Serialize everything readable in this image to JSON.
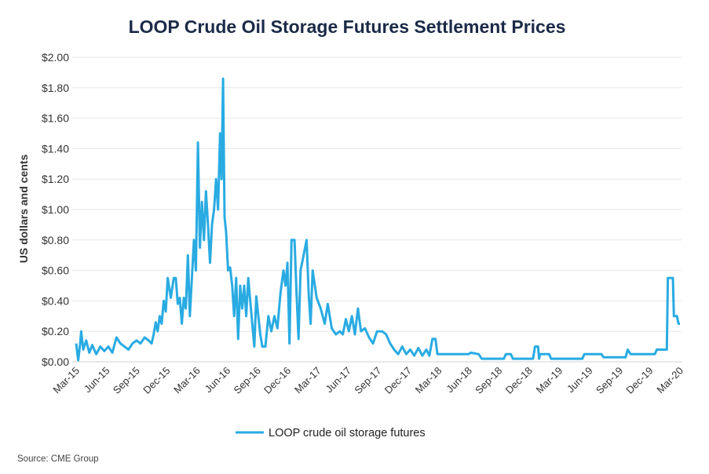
{
  "chart_data": {
    "type": "line",
    "title": "LOOP Crude Oil Storage Futures Settlement Prices",
    "xlabel": "",
    "ylabel": "US dollars and cents",
    "ylim": [
      0,
      2.0
    ],
    "yticks": [
      "$0.00",
      "$0.20",
      "$0.40",
      "$0.60",
      "$0.80",
      "$1.00",
      "$1.20",
      "$1.40",
      "$1.60",
      "$1.80",
      "$2.00"
    ],
    "ytick_values": [
      0,
      0.2,
      0.4,
      0.6,
      0.8,
      1.0,
      1.2,
      1.4,
      1.6,
      1.8,
      2.0
    ],
    "xticks": [
      "Mar-15",
      "Jun-15",
      "Sep-15",
      "Dec-15",
      "Mar-16",
      "Jun-16",
      "Sep-16",
      "Dec-16",
      "Mar-17",
      "Jun-17",
      "Sep-17",
      "Dec-17",
      "Mar-18",
      "Jun-18",
      "Sep-18",
      "Dec-18",
      "Mar-19",
      "Jun-19",
      "Sep-19",
      "Dec-19",
      "Mar-20"
    ],
    "x_unit": "months since Mar-15",
    "xlim": [
      0,
      60
    ],
    "grid": true,
    "legend_position": "bottom-center",
    "series": [
      {
        "name": "LOOP crude oil storage futures",
        "color": "#29abe2",
        "points": [
          [
            0,
            0.12
          ],
          [
            0.2,
            0.01
          ],
          [
            0.4,
            0.12
          ],
          [
            0.5,
            0.2
          ],
          [
            0.7,
            0.08
          ],
          [
            1,
            0.14
          ],
          [
            1.3,
            0.06
          ],
          [
            1.6,
            0.11
          ],
          [
            2,
            0.05
          ],
          [
            2.4,
            0.1
          ],
          [
            2.8,
            0.07
          ],
          [
            3.2,
            0.1
          ],
          [
            3.6,
            0.06
          ],
          [
            4,
            0.16
          ],
          [
            4.4,
            0.12
          ],
          [
            4.8,
            0.1
          ],
          [
            5.2,
            0.08
          ],
          [
            5.6,
            0.12
          ],
          [
            6,
            0.14
          ],
          [
            6.4,
            0.12
          ],
          [
            6.8,
            0.16
          ],
          [
            7.2,
            0.14
          ],
          [
            7.5,
            0.12
          ],
          [
            7.7,
            0.18
          ],
          [
            7.9,
            0.26
          ],
          [
            8.1,
            0.2
          ],
          [
            8.3,
            0.3
          ],
          [
            8.5,
            0.25
          ],
          [
            8.7,
            0.4
          ],
          [
            8.9,
            0.33
          ],
          [
            9.1,
            0.55
          ],
          [
            9.4,
            0.42
          ],
          [
            9.7,
            0.55
          ],
          [
            9.9,
            0.55
          ],
          [
            10.1,
            0.38
          ],
          [
            10.3,
            0.42
          ],
          [
            10.5,
            0.25
          ],
          [
            10.7,
            0.42
          ],
          [
            10.9,
            0.35
          ],
          [
            11.1,
            0.7
          ],
          [
            11.3,
            0.3
          ],
          [
            11.5,
            0.55
          ],
          [
            11.7,
            0.8
          ],
          [
            11.9,
            0.6
          ],
          [
            12.1,
            1.44
          ],
          [
            12.3,
            0.75
          ],
          [
            12.5,
            1.05
          ],
          [
            12.7,
            0.8
          ],
          [
            12.9,
            1.12
          ],
          [
            13.1,
            0.9
          ],
          [
            13.3,
            0.65
          ],
          [
            13.5,
            0.9
          ],
          [
            13.7,
            1.0
          ],
          [
            13.9,
            1.2
          ],
          [
            14.1,
            1.0
          ],
          [
            14.3,
            1.5
          ],
          [
            14.45,
            1.2
          ],
          [
            14.6,
            1.86
          ],
          [
            14.75,
            0.95
          ],
          [
            14.9,
            0.85
          ],
          [
            15.1,
            0.6
          ],
          [
            15.3,
            0.62
          ],
          [
            15.5,
            0.5
          ],
          [
            15.7,
            0.3
          ],
          [
            15.9,
            0.55
          ],
          [
            16.1,
            0.15
          ],
          [
            16.3,
            0.5
          ],
          [
            16.5,
            0.35
          ],
          [
            16.7,
            0.5
          ],
          [
            16.9,
            0.3
          ],
          [
            17.1,
            0.55
          ],
          [
            17.3,
            0.4
          ],
          [
            17.5,
            0.25
          ],
          [
            17.7,
            0.1
          ],
          [
            17.9,
            0.43
          ],
          [
            18.1,
            0.3
          ],
          [
            18.3,
            0.18
          ],
          [
            18.5,
            0.1
          ],
          [
            18.8,
            0.1
          ],
          [
            19.1,
            0.3
          ],
          [
            19.4,
            0.2
          ],
          [
            19.7,
            0.3
          ],
          [
            20,
            0.22
          ],
          [
            20.3,
            0.45
          ],
          [
            20.6,
            0.6
          ],
          [
            20.8,
            0.5
          ],
          [
            21.0,
            0.65
          ],
          [
            21.2,
            0.12
          ],
          [
            21.4,
            0.8
          ],
          [
            21.7,
            0.8
          ],
          [
            21.9,
            0.45
          ],
          [
            22.1,
            0.15
          ],
          [
            22.3,
            0.6
          ],
          [
            22.6,
            0.7
          ],
          [
            22.9,
            0.8
          ],
          [
            23.1,
            0.45
          ],
          [
            23.3,
            0.25
          ],
          [
            23.5,
            0.6
          ],
          [
            23.9,
            0.42
          ],
          [
            24.3,
            0.35
          ],
          [
            24.7,
            0.25
          ],
          [
            25.0,
            0.38
          ],
          [
            25.4,
            0.22
          ],
          [
            25.8,
            0.18
          ],
          [
            26.2,
            0.2
          ],
          [
            26.5,
            0.18
          ],
          [
            26.8,
            0.28
          ],
          [
            27.1,
            0.2
          ],
          [
            27.4,
            0.3
          ],
          [
            27.7,
            0.18
          ],
          [
            28,
            0.35
          ],
          [
            28.3,
            0.2
          ],
          [
            28.7,
            0.22
          ],
          [
            29.1,
            0.16
          ],
          [
            29.5,
            0.12
          ],
          [
            29.9,
            0.2
          ],
          [
            30.4,
            0.2
          ],
          [
            30.8,
            0.18
          ],
          [
            31.2,
            0.12
          ],
          [
            31.6,
            0.08
          ],
          [
            32,
            0.05
          ],
          [
            32.4,
            0.1
          ],
          [
            32.8,
            0.05
          ],
          [
            33.2,
            0.08
          ],
          [
            33.6,
            0.04
          ],
          [
            34,
            0.09
          ],
          [
            34.4,
            0.04
          ],
          [
            34.8,
            0.08
          ],
          [
            35.1,
            0.04
          ],
          [
            35.4,
            0.15
          ],
          [
            35.7,
            0.15
          ],
          [
            35.9,
            0.05
          ],
          [
            38,
            0.05
          ],
          [
            39,
            0.05
          ],
          [
            39.2,
            0.06
          ],
          [
            40,
            0.05
          ],
          [
            40.3,
            0.02
          ],
          [
            42.5,
            0.02
          ],
          [
            42.7,
            0.05
          ],
          [
            43.2,
            0.05
          ],
          [
            43.4,
            0.02
          ],
          [
            45.4,
            0.02
          ],
          [
            45.6,
            0.1
          ],
          [
            45.9,
            0.1
          ],
          [
            46,
            0.02
          ],
          [
            46.1,
            0.05
          ],
          [
            47,
            0.05
          ],
          [
            47.2,
            0.02
          ],
          [
            50.3,
            0.02
          ],
          [
            50.5,
            0.05
          ],
          [
            52.2,
            0.05
          ],
          [
            52.4,
            0.03
          ],
          [
            54.6,
            0.03
          ],
          [
            54.8,
            0.08
          ],
          [
            55.1,
            0.05
          ],
          [
            57.5,
            0.05
          ],
          [
            57.7,
            0.08
          ],
          [
            58.7,
            0.08
          ],
          [
            58.8,
            0.55
          ],
          [
            59.3,
            0.55
          ],
          [
            59.4,
            0.3
          ],
          [
            59.7,
            0.3
          ],
          [
            59.85,
            0.25
          ],
          [
            60,
            0.25
          ]
        ]
      }
    ],
    "source": "Source: CME Group"
  }
}
